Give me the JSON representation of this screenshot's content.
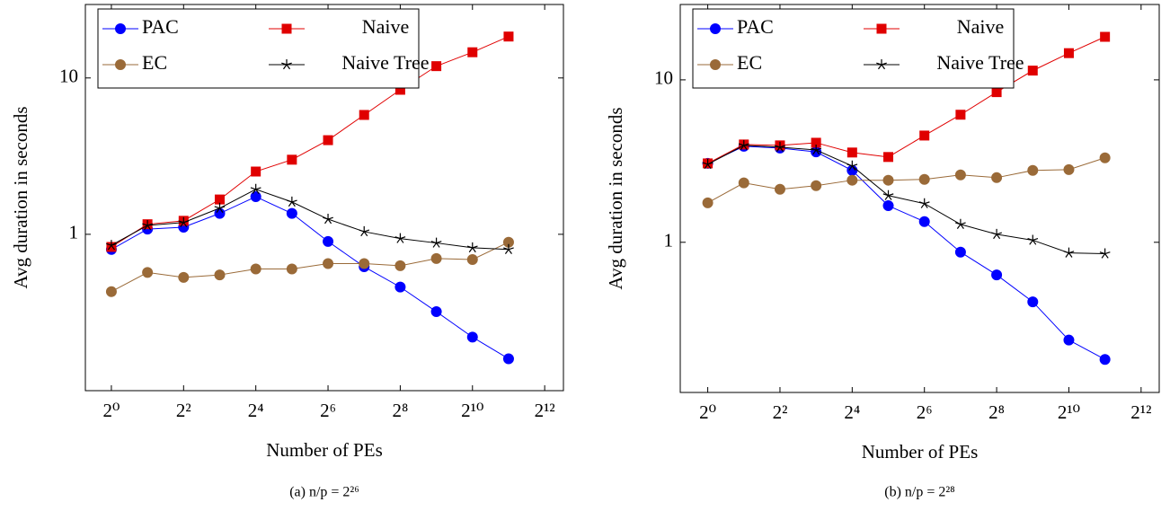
{
  "chart_data": [
    {
      "type": "line",
      "caption": "(a) n/p = 2²⁶",
      "x_label": "Number of PEs",
      "y_label": "Avg duration in seconds",
      "x": [
        1,
        2,
        4,
        8,
        16,
        32,
        64,
        128,
        256,
        512,
        1024,
        2048
      ],
      "xlim": [
        0.607,
        5870
      ],
      "ylim": [
        0.1,
        29.5
      ],
      "x_log_base": 2,
      "y_log": true,
      "legend": "north west",
      "xticks": [
        {
          "value": 1,
          "label": "2⁰"
        },
        {
          "value": 4,
          "label": "2²"
        },
        {
          "value": 16,
          "label": "2⁴"
        },
        {
          "value": 64,
          "label": "2⁶"
        },
        {
          "value": 256,
          "label": "2⁸"
        },
        {
          "value": 1024,
          "label": "2¹⁰"
        },
        {
          "value": 4096,
          "label": "2¹²"
        }
      ],
      "yticks": [
        1,
        10
      ],
      "series": [
        {
          "name": "PAC",
          "color": "#0000ff",
          "marker": "circle",
          "values": [
            0.8,
            1.08,
            1.11,
            1.36,
            1.74,
            1.36,
            0.9,
            0.62,
            0.46,
            0.32,
            0.22,
            0.16
          ]
        },
        {
          "name": "Naive",
          "color": "#e00000",
          "marker": "square",
          "values": [
            0.83,
            1.16,
            1.22,
            1.67,
            2.52,
            3.0,
            4.0,
            5.8,
            8.4,
            11.9,
            14.6,
            18.4
          ]
        },
        {
          "name": "EC",
          "color": "#9a6a38",
          "marker": "circle",
          "values": [
            0.43,
            0.57,
            0.53,
            0.55,
            0.6,
            0.6,
            0.65,
            0.65,
            0.63,
            0.7,
            0.69,
            0.89
          ]
        },
        {
          "name": "Naive Tree",
          "color": "#000000",
          "marker": "star",
          "values": [
            0.85,
            1.14,
            1.19,
            1.47,
            1.94,
            1.61,
            1.25,
            1.04,
            0.94,
            0.88,
            0.82,
            0.8
          ]
        }
      ]
    },
    {
      "type": "line",
      "caption": "(b) n/p = 2²⁸",
      "x_label": "Number of PEs",
      "y_label": "Avg duration in seconds",
      "x": [
        1,
        2,
        4,
        8,
        16,
        32,
        64,
        128,
        256,
        512,
        1024,
        2048
      ],
      "xlim": [
        0.59,
        5800
      ],
      "ylim": [
        0.119,
        29.1
      ],
      "x_log_base": 2,
      "y_log": true,
      "legend": "north west",
      "xticks": [
        {
          "value": 1,
          "label": "2⁰"
        },
        {
          "value": 4,
          "label": "2²"
        },
        {
          "value": 16,
          "label": "2⁴"
        },
        {
          "value": 64,
          "label": "2⁶"
        },
        {
          "value": 256,
          "label": "2⁸"
        },
        {
          "value": 1024,
          "label": "2¹⁰"
        },
        {
          "value": 4096,
          "label": "2¹²"
        }
      ],
      "yticks": [
        1,
        10
      ],
      "series": [
        {
          "name": "PAC",
          "color": "#0000ff",
          "marker": "circle",
          "values": [
            3.06,
            3.9,
            3.8,
            3.6,
            2.77,
            1.68,
            1.34,
            0.87,
            0.63,
            0.43,
            0.25,
            0.19
          ]
        },
        {
          "name": "Naive",
          "color": "#e00000",
          "marker": "square",
          "values": [
            3.06,
            4.0,
            3.95,
            4.1,
            3.57,
            3.35,
            4.54,
            6.1,
            8.4,
            11.4,
            14.6,
            18.4
          ]
        },
        {
          "name": "EC",
          "color": "#9a6a38",
          "marker": "circle",
          "values": [
            1.75,
            2.32,
            2.12,
            2.23,
            2.41,
            2.41,
            2.44,
            2.6,
            2.5,
            2.77,
            2.8,
            3.31
          ]
        },
        {
          "name": "Naive Tree",
          "color": "#000000",
          "marker": "star",
          "values": [
            3.02,
            3.95,
            3.85,
            3.7,
            2.95,
            1.94,
            1.73,
            1.29,
            1.12,
            1.03,
            0.86,
            0.85
          ]
        }
      ]
    }
  ]
}
